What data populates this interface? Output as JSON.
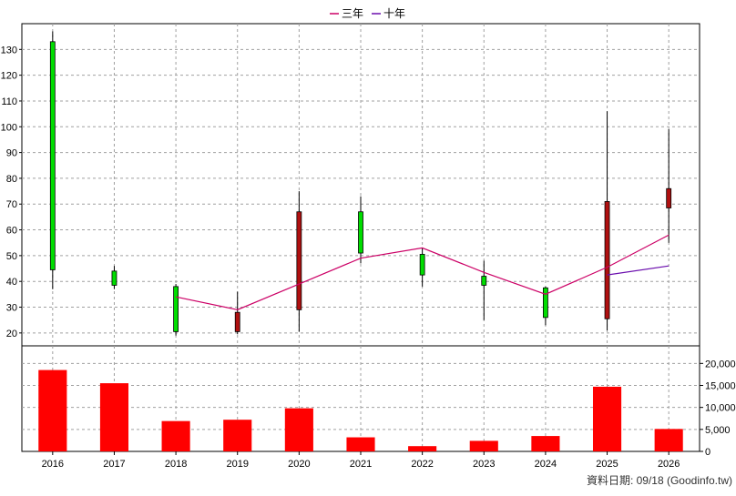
{
  "chart_data": {
    "type": "candlestick",
    "legend": {
      "placement": "top-center",
      "items": [
        {
          "name": "三年",
          "color": "#cc0066"
        },
        {
          "name": "十年",
          "color": "#6a0dad"
        }
      ]
    },
    "categories": [
      "2016",
      "2017",
      "2018",
      "2019",
      "2020",
      "2021",
      "2022",
      "2023",
      "2024",
      "2025",
      "2026"
    ],
    "price_axis": {
      "ylim": [
        15,
        140
      ],
      "ticks": [
        20,
        30,
        40,
        50,
        60,
        70,
        80,
        90,
        100,
        110,
        120,
        130
      ]
    },
    "volume_axis": {
      "ylim": [
        0,
        24000
      ],
      "ticks": [
        0,
        5000,
        10000,
        15000,
        20000
      ],
      "tick_labels": [
        "0",
        "5,000",
        "10,000",
        "15,000",
        "20,000"
      ]
    },
    "candles": [
      {
        "year": "2016",
        "open": 44.5,
        "close": 133,
        "high": 137,
        "low": 37,
        "direction": "up"
      },
      {
        "year": "2017",
        "open": 38.5,
        "close": 44,
        "high": 46,
        "low": 37,
        "direction": "up"
      },
      {
        "year": "2018",
        "open": 20.5,
        "close": 38,
        "high": 39,
        "low": 19,
        "direction": "up"
      },
      {
        "year": "2019",
        "open": 28,
        "close": 20.5,
        "high": 36,
        "low": 19.5,
        "direction": "down"
      },
      {
        "year": "2020",
        "open": 67,
        "close": 29,
        "high": 75,
        "low": 20.5,
        "direction": "down"
      },
      {
        "year": "2021",
        "open": 51,
        "close": 67,
        "high": 73,
        "low": 47,
        "direction": "up"
      },
      {
        "year": "2022",
        "open": 42.5,
        "close": 50.5,
        "high": 53,
        "low": 38,
        "direction": "up"
      },
      {
        "year": "2023",
        "open": 38.5,
        "close": 42,
        "high": 48,
        "low": 25,
        "direction": "up"
      },
      {
        "year": "2024",
        "open": 26,
        "close": 37.5,
        "high": 38,
        "low": 23,
        "direction": "up"
      },
      {
        "year": "2025",
        "open": 71,
        "close": 25.5,
        "high": 106,
        "low": 21,
        "direction": "down"
      },
      {
        "year": "2026",
        "open": 76,
        "close": 68.5,
        "high": 99,
        "low": 55,
        "direction": "down"
      }
    ],
    "series": [
      {
        "name": "三年",
        "color": "#cc0066",
        "points": [
          [
            "2018",
            34
          ],
          [
            "2019",
            29
          ],
          [
            "2020",
            39
          ],
          [
            "2021",
            49
          ],
          [
            "2022",
            53
          ],
          [
            "2023",
            43.5
          ],
          [
            "2024",
            35
          ],
          [
            "2025",
            45.5
          ],
          [
            "2026",
            58
          ]
        ]
      },
      {
        "name": "十年",
        "color": "#6a0dad",
        "points": [
          [
            "2025",
            42.5
          ],
          [
            "2026",
            46
          ]
        ]
      }
    ],
    "volume": [
      {
        "year": "2016",
        "value": 18500
      },
      {
        "year": "2017",
        "value": 15500
      },
      {
        "year": "2018",
        "value": 6900
      },
      {
        "year": "2019",
        "value": 7200
      },
      {
        "year": "2020",
        "value": 9800
      },
      {
        "year": "2021",
        "value": 3200
      },
      {
        "year": "2022",
        "value": 1200
      },
      {
        "year": "2023",
        "value": 2400
      },
      {
        "year": "2024",
        "value": 3500
      },
      {
        "year": "2025",
        "value": 14700
      },
      {
        "year": "2026",
        "value": 5100
      }
    ],
    "colors": {
      "up_candle": "#00dd00",
      "down_candle": "#b01010",
      "volume_bar": "#ff0000",
      "grid": "#a0a0a0"
    },
    "grid": true
  },
  "footer": {
    "source_text": "資料日期: 09/18  (Goodinfo.tw)"
  }
}
